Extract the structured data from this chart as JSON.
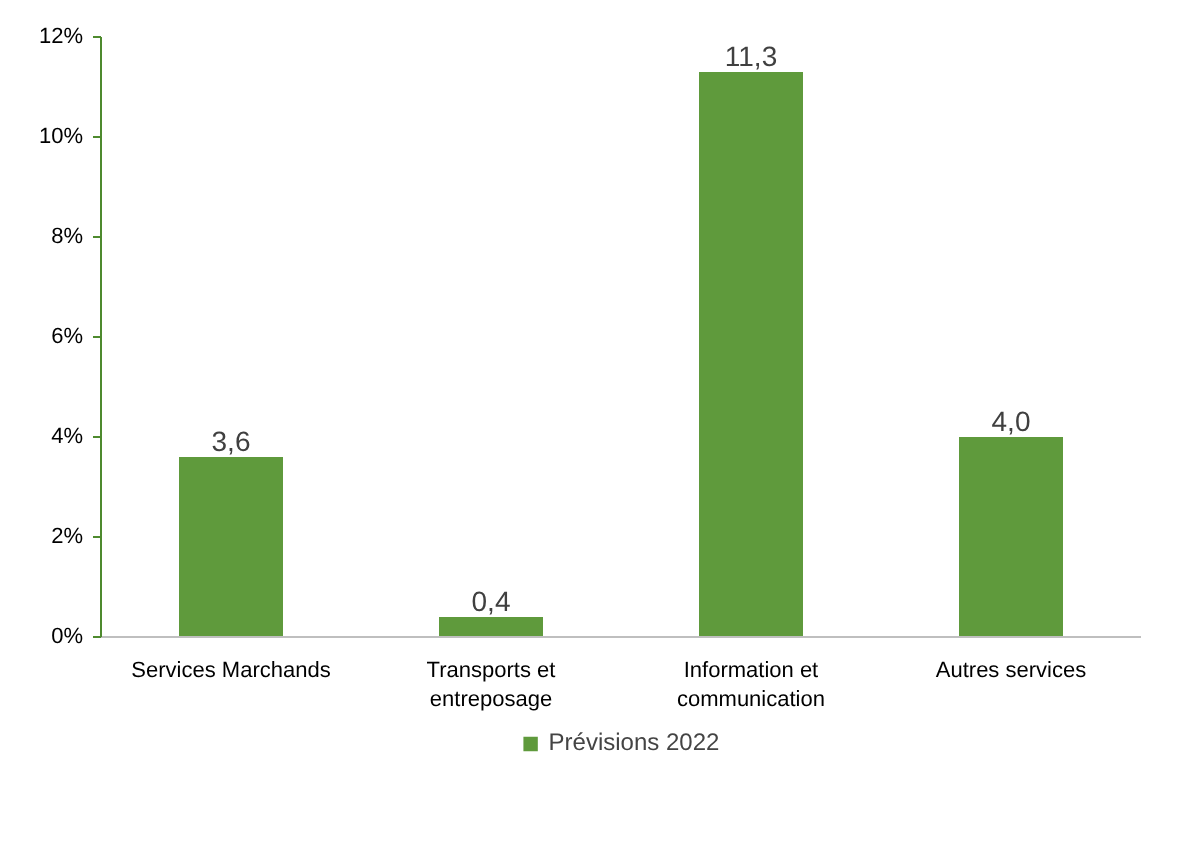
{
  "chart_data": {
    "type": "bar",
    "categories": [
      "Services Marchands",
      "Transports et entreposage",
      "Information et communication",
      "Autres services"
    ],
    "series": [
      {
        "name": "Prévisions 2022",
        "color": "#5f9a3c",
        "values": [
          3.6,
          0.4,
          11.3,
          4.0
        ],
        "value_labels": [
          "3,6",
          "0,4",
          "11,3",
          "4,0"
        ]
      }
    ],
    "ylim": [
      0,
      12
    ],
    "yticks": [
      {
        "value": 0,
        "label": "0%"
      },
      {
        "value": 2,
        "label": "2%"
      },
      {
        "value": 4,
        "label": "4%"
      },
      {
        "value": 6,
        "label": "6%"
      },
      {
        "value": 8,
        "label": "8%"
      },
      {
        "value": 10,
        "label": "10%"
      },
      {
        "value": 12,
        "label": "12%"
      }
    ],
    "grid": false,
    "legend": "bottom"
  }
}
